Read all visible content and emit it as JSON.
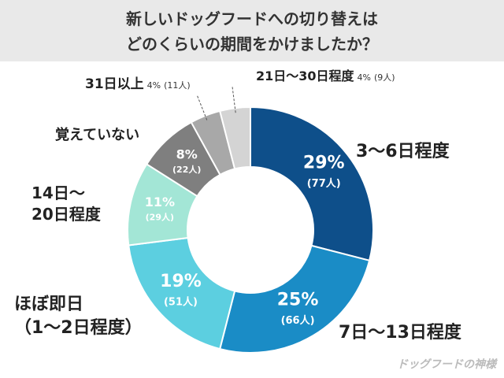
{
  "chart_data": {
    "type": "donut",
    "title": [
      "新しいドッグフードへの切り替えは",
      "どのくらいの期間をかけましたか？"
    ],
    "categories": [
      "3〜6日程度",
      "7日〜13日程度",
      "ほぼ即日\n（1〜2日程度）",
      "14日〜\n20日程度",
      "覚えていない",
      "31日以上",
      "21日〜30日程度"
    ],
    "values": [
      29,
      25,
      19,
      11,
      8,
      4,
      4
    ],
    "value_labels": [
      "29%",
      "25%",
      "19%",
      "11%",
      "8%",
      "4%",
      "4%"
    ],
    "count_labels": [
      "(77人)",
      "(66人)",
      "(51人)",
      "(29人)",
      "(22人)",
      "(11人)",
      "(9人)"
    ],
    "colors": [
      "#0e4f8a",
      "#1a8cc6",
      "#5ccfe0",
      "#a3e6d6",
      "#7f7f7f",
      "#a8a8a8",
      "#d4d4d4"
    ],
    "watermark": "ドッグフードの神様"
  }
}
